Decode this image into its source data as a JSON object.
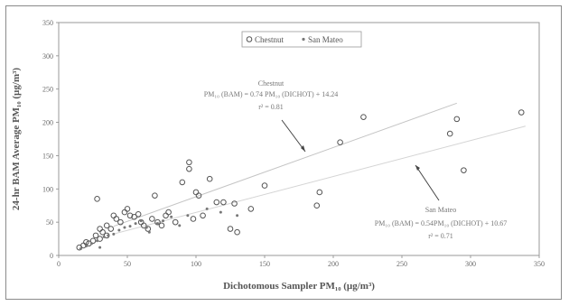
{
  "chart_data": {
    "type": "scatter",
    "xlabel": "Dichotomous Sampler PM₁₀ (µg/m³)",
    "ylabel": "24-hr BAM Average PM₁₀ (µg/m³)",
    "xlim": [
      0,
      350
    ],
    "ylim": [
      0,
      350
    ],
    "xticks": [
      "0",
      "50",
      "100",
      "150",
      "200",
      "250",
      "300",
      "350"
    ],
    "yticks": [
      "0",
      "50",
      "100",
      "150",
      "200",
      "250",
      "300",
      "350"
    ],
    "grid": false,
    "legend_position": "top-right",
    "series": [
      {
        "name": "Chestnut",
        "color": "#555555",
        "marker": "open-circle",
        "points": [
          [
            15,
            12
          ],
          [
            18,
            15
          ],
          [
            20,
            20
          ],
          [
            22,
            18
          ],
          [
            25,
            22
          ],
          [
            27,
            30
          ],
          [
            28,
            85
          ],
          [
            30,
            40
          ],
          [
            30,
            25
          ],
          [
            32,
            35
          ],
          [
            35,
            30
          ],
          [
            35,
            45
          ],
          [
            38,
            40
          ],
          [
            40,
            60
          ],
          [
            42,
            55
          ],
          [
            45,
            50
          ],
          [
            48,
            65
          ],
          [
            50,
            70
          ],
          [
            52,
            60
          ],
          [
            55,
            58
          ],
          [
            58,
            62
          ],
          [
            60,
            50
          ],
          [
            62,
            45
          ],
          [
            65,
            40
          ],
          [
            68,
            55
          ],
          [
            70,
            90
          ],
          [
            72,
            50
          ],
          [
            75,
            45
          ],
          [
            78,
            60
          ],
          [
            80,
            65
          ],
          [
            85,
            50
          ],
          [
            90,
            110
          ],
          [
            95,
            140
          ],
          [
            95,
            130
          ],
          [
            98,
            55
          ],
          [
            100,
            95
          ],
          [
            102,
            90
          ],
          [
            105,
            60
          ],
          [
            110,
            115
          ],
          [
            115,
            80
          ],
          [
            120,
            80
          ],
          [
            125,
            40
          ],
          [
            128,
            78
          ],
          [
            130,
            35
          ],
          [
            140,
            70
          ],
          [
            150,
            105
          ],
          [
            190,
            95
          ],
          [
            188,
            75
          ],
          [
            205,
            170
          ],
          [
            222,
            208
          ],
          [
            285,
            183
          ],
          [
            290,
            205
          ],
          [
            295,
            128
          ],
          [
            337,
            215
          ]
        ]
      },
      {
        "name": "San Mateo",
        "color": "#777777",
        "marker": "small-point",
        "points": [
          [
            16,
            10
          ],
          [
            20,
            14
          ],
          [
            24,
            18
          ],
          [
            28,
            22
          ],
          [
            30,
            12
          ],
          [
            33,
            28
          ],
          [
            36,
            30
          ],
          [
            40,
            32
          ],
          [
            44,
            38
          ],
          [
            48,
            42
          ],
          [
            52,
            44
          ],
          [
            56,
            48
          ],
          [
            60,
            52
          ],
          [
            64,
            42
          ],
          [
            66,
            35
          ],
          [
            72,
            48
          ],
          [
            76,
            52
          ],
          [
            82,
            58
          ],
          [
            88,
            45
          ],
          [
            94,
            60
          ],
          [
            108,
            70
          ],
          [
            118,
            65
          ],
          [
            130,
            60
          ]
        ]
      }
    ],
    "fits": [
      {
        "name": "Chestnut",
        "slope": 0.74,
        "intercept": 14.24,
        "x_range": [
          40,
          290
        ],
        "color": "#c4c4c4"
      },
      {
        "name": "San Mateo",
        "slope": 0.54,
        "intercept": 10.67,
        "x_range": [
          40,
          340
        ],
        "color": "#d4d4d4"
      }
    ],
    "annotations": {
      "chestnut": {
        "title": "Chestnut",
        "equation": "PM₁₀ (BAM) = 0.74 PM₁₀ (DICHOT) + 14.24",
        "r2": "r² = 0.81"
      },
      "sanmateo": {
        "title": "San Mateo",
        "equation": "PM₁₀ (BAM) = 0.54PM₁₀ (DICHOT) + 10.67",
        "r2": "r² = 0.71"
      }
    }
  }
}
